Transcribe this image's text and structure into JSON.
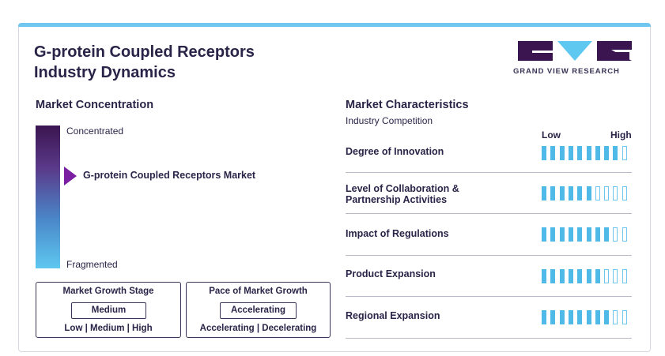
{
  "title_line1": "G-protein Coupled Receptors",
  "title_line2": "Industry Dynamics",
  "logo_text": "GRAND VIEW RESEARCH",
  "colors": {
    "accent": "#6fc6ee",
    "dark": "#3a3556",
    "marker": "#7a1fa2"
  },
  "concentration": {
    "heading": "Market Concentration",
    "top_label": "Concentrated",
    "bottom_label": "Fragmented",
    "market_label": "G-protein Coupled Receptors Market"
  },
  "growth_stage": {
    "title": "Market Growth Stage",
    "value": "Medium",
    "options": "Low | Medium | High"
  },
  "growth_pace": {
    "title": "Pace of Market Growth",
    "value": "Accelerating",
    "options": "Accelerating | Decelerating"
  },
  "characteristics": {
    "heading": "Market Characteristics",
    "subheading": "Industry Competition",
    "scale_low": "Low",
    "scale_high": "High",
    "segments_total": 10,
    "items": [
      {
        "label": "Degree of Innovation",
        "level": 9
      },
      {
        "label": "Level of Collaboration &\nPartnership Activities",
        "level": 6
      },
      {
        "label": "Impact of Regulations",
        "level": 8
      },
      {
        "label": "Product Expansion",
        "level": 7
      },
      {
        "label": "Regional Expansion",
        "level": 8
      }
    ]
  }
}
